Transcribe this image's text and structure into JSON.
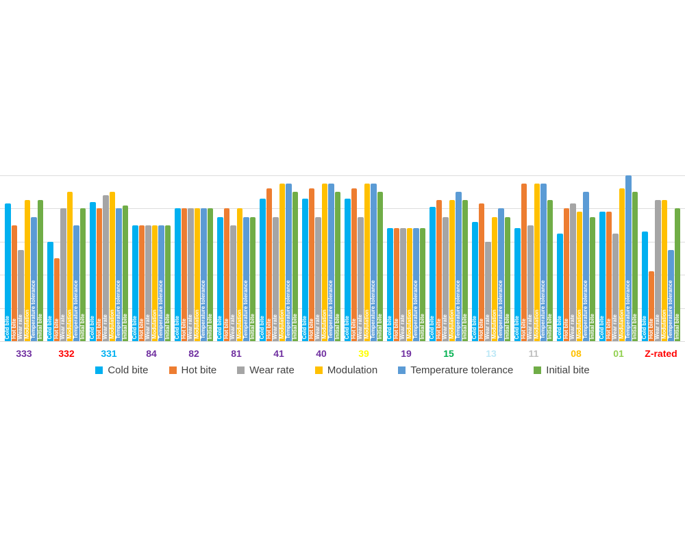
{
  "page": {
    "background": "#ffffff"
  },
  "chart_data": {
    "type": "bar",
    "title": "",
    "xlabel": "",
    "ylabel": "",
    "ylim": [
      0,
      10
    ],
    "gridline_interval": 2,
    "grid": true,
    "legend_position": "bottom",
    "bar_inner_labels": "series name printed vertically in white inside each bar",
    "categories": [
      "333",
      "332",
      "331",
      "84",
      "82",
      "81",
      "41",
      "40",
      "39",
      "19",
      "15",
      "13",
      "11",
      "08",
      "01",
      "Z-rated"
    ],
    "category_label_colors": [
      "#7030A0",
      "#FF0000",
      "#00B0F0",
      "#7030A0",
      "#7030A0",
      "#7030A0",
      "#7030A0",
      "#7030A0",
      "#FFFF00",
      "#7030A0",
      "#00B050",
      "#BDE8F6",
      "#BFBFBF",
      "#FFC000",
      "#92D050",
      "#FF0000"
    ],
    "series": [
      {
        "name": "Cold bite",
        "color": "#00B0F0",
        "values": [
          8.3,
          6.0,
          8.4,
          7.0,
          8.0,
          7.5,
          8.6,
          8.6,
          8.6,
          6.8,
          8.1,
          7.2,
          6.8,
          6.5,
          7.8,
          6.6
        ]
      },
      {
        "name": "Hot bite",
        "color": "#ED7D31",
        "values": [
          7.0,
          5.0,
          8.0,
          7.0,
          8.0,
          8.0,
          9.2,
          9.2,
          9.2,
          6.8,
          8.5,
          8.3,
          9.5,
          8.0,
          7.8,
          4.2
        ]
      },
      {
        "name": "Wear rate",
        "color": "#A5A5A5",
        "values": [
          5.5,
          8.0,
          8.8,
          7.0,
          8.0,
          7.0,
          7.5,
          7.5,
          7.5,
          6.8,
          7.5,
          6.0,
          7.0,
          8.3,
          6.5,
          8.5
        ]
      },
      {
        "name": "Modulation",
        "color": "#FFC000",
        "values": [
          8.5,
          9.0,
          9.0,
          7.0,
          8.0,
          8.0,
          9.5,
          9.5,
          9.5,
          6.8,
          8.5,
          7.5,
          9.5,
          7.8,
          9.2,
          8.5
        ]
      },
      {
        "name": "Temperature tolerance",
        "color": "#5B9BD5",
        "values": [
          7.5,
          7.0,
          8.0,
          7.0,
          8.0,
          7.5,
          9.5,
          9.5,
          9.5,
          6.8,
          9.0,
          8.0,
          9.5,
          9.0,
          10.0,
          5.5
        ]
      },
      {
        "name": "Initial bite",
        "color": "#70AD47",
        "values": [
          8.5,
          8.0,
          8.2,
          7.0,
          8.0,
          7.5,
          9.0,
          9.0,
          9.0,
          6.8,
          8.5,
          7.5,
          8.5,
          7.5,
          9.0,
          8.0
        ]
      }
    ]
  },
  "legend": {
    "items": [
      {
        "label": "Cold bite",
        "color": "#00B0F0"
      },
      {
        "label": "Hot bite",
        "color": "#ED7D31"
      },
      {
        "label": "Wear rate",
        "color": "#A5A5A5"
      },
      {
        "label": "Modulation",
        "color": "#FFC000"
      },
      {
        "label": "Temperature tolerance",
        "color": "#5B9BD5"
      },
      {
        "label": "Initial bite",
        "color": "#70AD47"
      }
    ]
  }
}
